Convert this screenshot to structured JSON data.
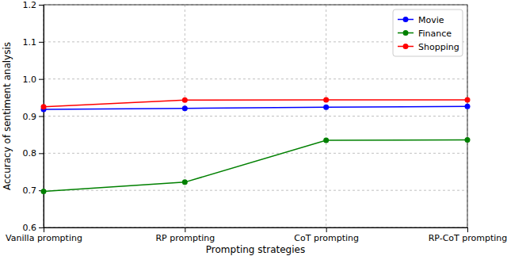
{
  "chart_data": {
    "type": "line",
    "x_label": "Prompting strategies",
    "y_label": "Accuracy of sentiment analysis",
    "categories": [
      "Vanilla prompting",
      "RP prompting",
      "CoT prompting",
      "RP-CoT prompting"
    ],
    "series": [
      {
        "name": "Movie",
        "color": "#0000ff",
        "values": [
          0.918,
          0.921,
          0.924,
          0.926
        ]
      },
      {
        "name": "Finance",
        "color": "#008000",
        "values": [
          0.697,
          0.722,
          0.835,
          0.836
        ]
      },
      {
        "name": "Shopping",
        "color": "#ff0000",
        "values": [
          0.925,
          0.943,
          0.944,
          0.944
        ]
      }
    ],
    "ylim": [
      0.6,
      1.2
    ],
    "yticks": [
      0.6,
      0.7,
      0.8,
      0.9,
      {
        "value": 1,
        "label": "1.0"
      },
      1.1,
      1.2
    ],
    "grid": true,
    "legend": "upper right",
    "marker": "circle"
  }
}
